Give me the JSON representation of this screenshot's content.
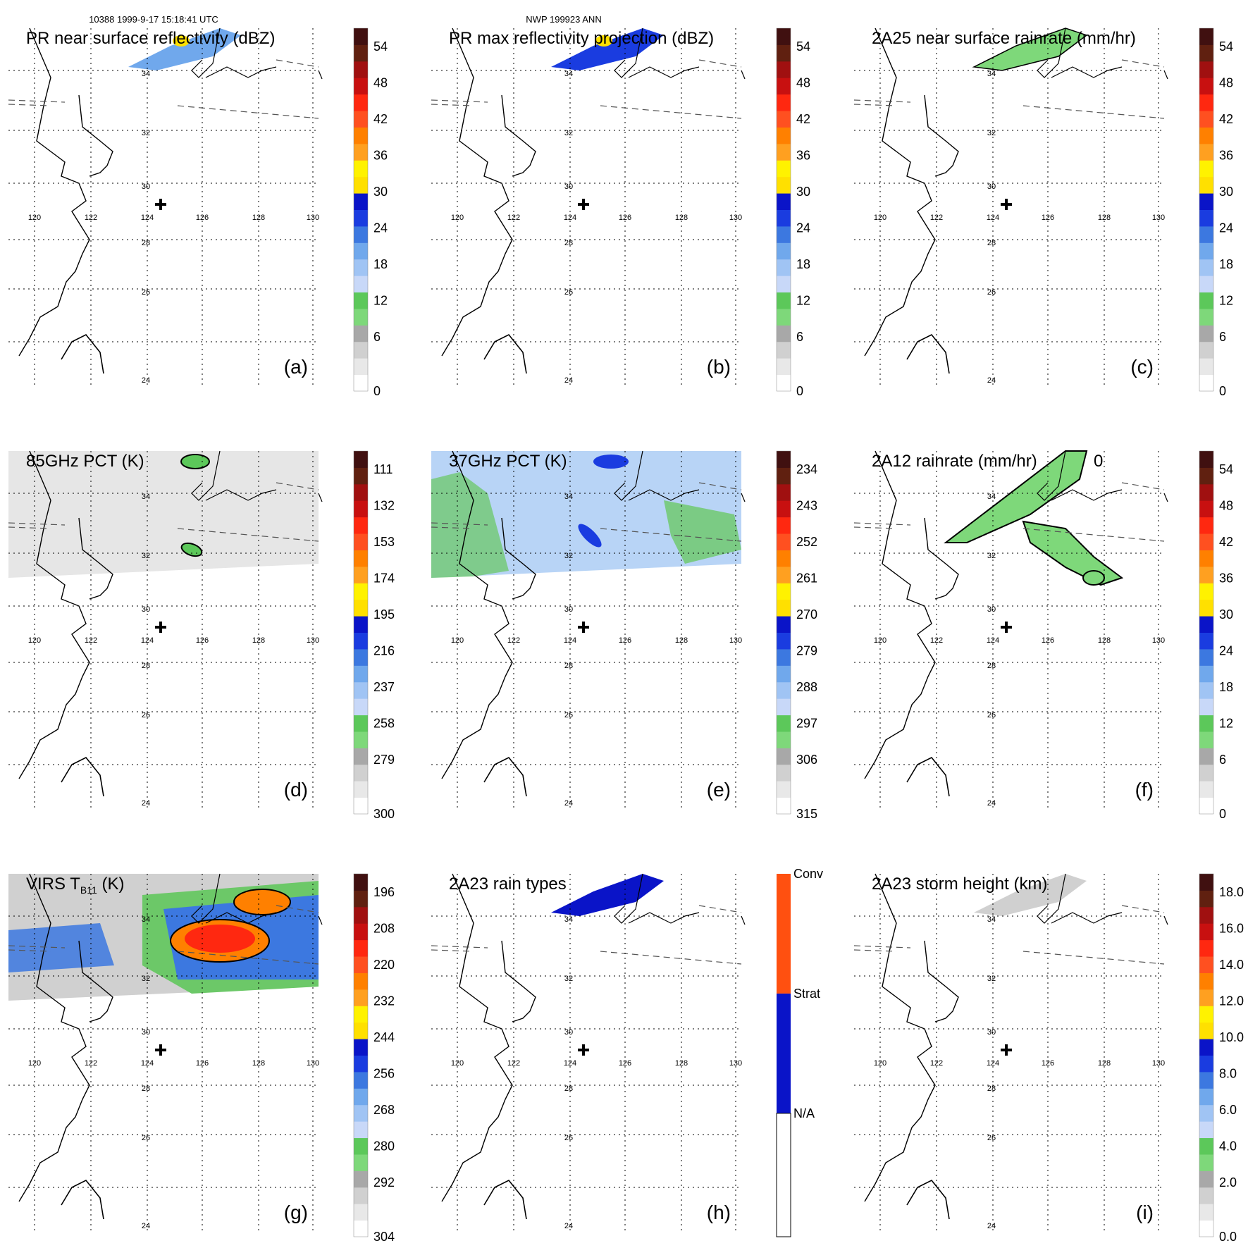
{
  "header": {
    "left": "10388 1999-9-17 15:18:41 UTC",
    "center": "NWP 199923 ANN"
  },
  "grid_labels": {
    "lat": [
      "34",
      "32",
      "30",
      "28",
      "26",
      "24"
    ],
    "lon": [
      "120",
      "122",
      "124",
      "126",
      "128",
      "130"
    ]
  },
  "panels": [
    {
      "id": "a",
      "title": "PR near surface reflectivity (dBZ)",
      "label": "(a)",
      "ticks": [
        "54",
        "48",
        "42",
        "36",
        "30",
        "24",
        "18",
        "12",
        "6",
        "0"
      ]
    },
    {
      "id": "b",
      "title": "PR max reflectivity projection (dBZ)",
      "label": "(b)",
      "ticks": [
        "54",
        "48",
        "42",
        "36",
        "30",
        "24",
        "18",
        "12",
        "6",
        "0"
      ]
    },
    {
      "id": "c",
      "title": "2A25 near surface rainrate (mm/hr)",
      "label": "(c)",
      "ticks": [
        "54",
        "48",
        "42",
        "36",
        "30",
        "24",
        "18",
        "12",
        "6",
        "0"
      ]
    },
    {
      "id": "d",
      "title": "85GHz PCT (K)",
      "label": "(d)",
      "ticks": [
        "111",
        "132",
        "153",
        "174",
        "195",
        "216",
        "237",
        "258",
        "279",
        "300"
      ]
    },
    {
      "id": "e",
      "title": "37GHz PCT (K)",
      "label": "(e)",
      "ticks": [
        "234",
        "243",
        "252",
        "261",
        "270",
        "279",
        "288",
        "297",
        "306",
        "315"
      ]
    },
    {
      "id": "f",
      "title": "2A12 rainrate (mm/hr)",
      "label": "(f)",
      "extra": "0",
      "ticks": [
        "54",
        "48",
        "42",
        "36",
        "30",
        "24",
        "18",
        "12",
        "6",
        "0"
      ]
    },
    {
      "id": "g",
      "title": "VIRS T",
      "title_sub": "B11",
      "title_tail": " (K)",
      "label": "(g)",
      "ticks": [
        "196",
        "208",
        "220",
        "232",
        "244",
        "256",
        "268",
        "280",
        "292",
        "304"
      ]
    },
    {
      "id": "h",
      "title": "2A23 rain types",
      "label": "(h)",
      "ticks": [
        "Conv",
        "Strat",
        "N/A"
      ]
    },
    {
      "id": "i",
      "title": "2A23 storm height (km)",
      "label": "(i)",
      "ticks": [
        "18.0",
        "16.0",
        "14.0",
        "12.0",
        "10.0",
        "8.0",
        "6.0",
        "4.0",
        "2.0",
        "0.0"
      ]
    }
  ],
  "colors": {
    "scale": [
      "#ffffff",
      "#e8e8e8",
      "#d0d0d0",
      "#a8a8a8",
      "#7ed87a",
      "#5cc85a",
      "#c8d8f8",
      "#a0c4f4",
      "#70a8ec",
      "#3c78e0",
      "#1a3ce0",
      "#0a14c8",
      "#ffe000",
      "#fff200",
      "#ffa020",
      "#ff8000",
      "#ff5020",
      "#ff2810",
      "#c81010",
      "#a01010",
      "#602010",
      "#401010"
    ],
    "rain_types": [
      "#ffffff",
      "#0a14c8",
      "#ff5010"
    ]
  }
}
